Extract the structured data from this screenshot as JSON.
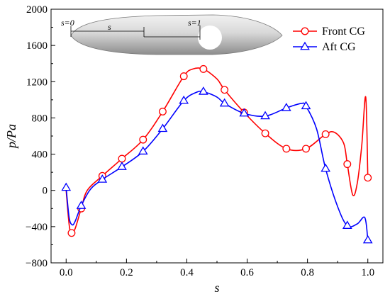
{
  "chart_data": {
    "type": "line",
    "xlabel": "s",
    "ylabel": "p/Pa",
    "xlim": [
      -0.05,
      1.05
    ],
    "ylim": [
      -800,
      2000
    ],
    "xticks": [
      0.0,
      0.2,
      0.4,
      0.6,
      0.8,
      1.0
    ],
    "xtick_labels": [
      "0.0",
      "0.2",
      "0.4",
      "0.6",
      "0.8",
      "1.0"
    ],
    "yticks": [
      -800,
      -400,
      0,
      400,
      800,
      1200,
      1600,
      2000
    ],
    "ytick_labels": [
      "−800",
      "−400",
      "0",
      "400",
      "800",
      "1200",
      "1600",
      "2000"
    ],
    "grid": false,
    "legend": "top-right",
    "inset_labels": {
      "s_zero": "s=0",
      "s": "s",
      "s_one": "s=1"
    },
    "series": [
      {
        "name": "Front CG",
        "color": "#ff0000",
        "marker": "circle",
        "x": [
          0.0,
          0.01,
          0.018,
          0.03,
          0.05,
          0.07,
          0.12,
          0.185,
          0.255,
          0.32,
          0.39,
          0.42,
          0.455,
          0.5,
          0.525,
          0.59,
          0.66,
          0.73,
          0.795,
          0.86,
          0.89,
          0.92,
          0.932,
          0.95,
          0.965,
          0.98,
          0.993,
          1.0
        ],
        "y": [
          0,
          -380,
          -470,
          -420,
          -200,
          0,
          160,
          350,
          560,
          870,
          1260,
          1340,
          1340,
          1230,
          1110,
          860,
          630,
          460,
          460,
          620,
          640,
          520,
          290,
          -50,
          80,
          500,
          1030,
          140
        ],
        "marker_x": [
          0.018,
          0.05,
          0.12,
          0.185,
          0.255,
          0.32,
          0.39,
          0.455,
          0.525,
          0.59,
          0.66,
          0.73,
          0.795,
          0.86,
          0.932,
          1.0
        ],
        "marker_y": [
          -470,
          -200,
          160,
          350,
          560,
          870,
          1260,
          1340,
          1110,
          860,
          630,
          460,
          460,
          620,
          290,
          140
        ]
      },
      {
        "name": "Aft CG",
        "color": "#0000ff",
        "marker": "triangle",
        "x": [
          0.0,
          0.01,
          0.02,
          0.03,
          0.05,
          0.08,
          0.12,
          0.185,
          0.255,
          0.32,
          0.39,
          0.43,
          0.455,
          0.5,
          0.525,
          0.59,
          0.66,
          0.73,
          0.78,
          0.795,
          0.83,
          0.86,
          0.9,
          0.932,
          0.965,
          0.99,
          1.0
        ],
        "y": [
          30,
          -300,
          -380,
          -340,
          -170,
          10,
          120,
          260,
          430,
          680,
          990,
          1080,
          1090,
          1030,
          960,
          850,
          820,
          910,
          960,
          930,
          680,
          240,
          -180,
          -390,
          -370,
          -300,
          -550
        ],
        "marker_x": [
          0.0,
          0.05,
          0.12,
          0.185,
          0.255,
          0.32,
          0.39,
          0.455,
          0.525,
          0.59,
          0.66,
          0.73,
          0.795,
          0.86,
          0.932,
          1.0
        ],
        "marker_y": [
          30,
          -170,
          120,
          260,
          430,
          680,
          990,
          1090,
          960,
          850,
          820,
          910,
          930,
          240,
          -390,
          -550
        ]
      }
    ]
  }
}
